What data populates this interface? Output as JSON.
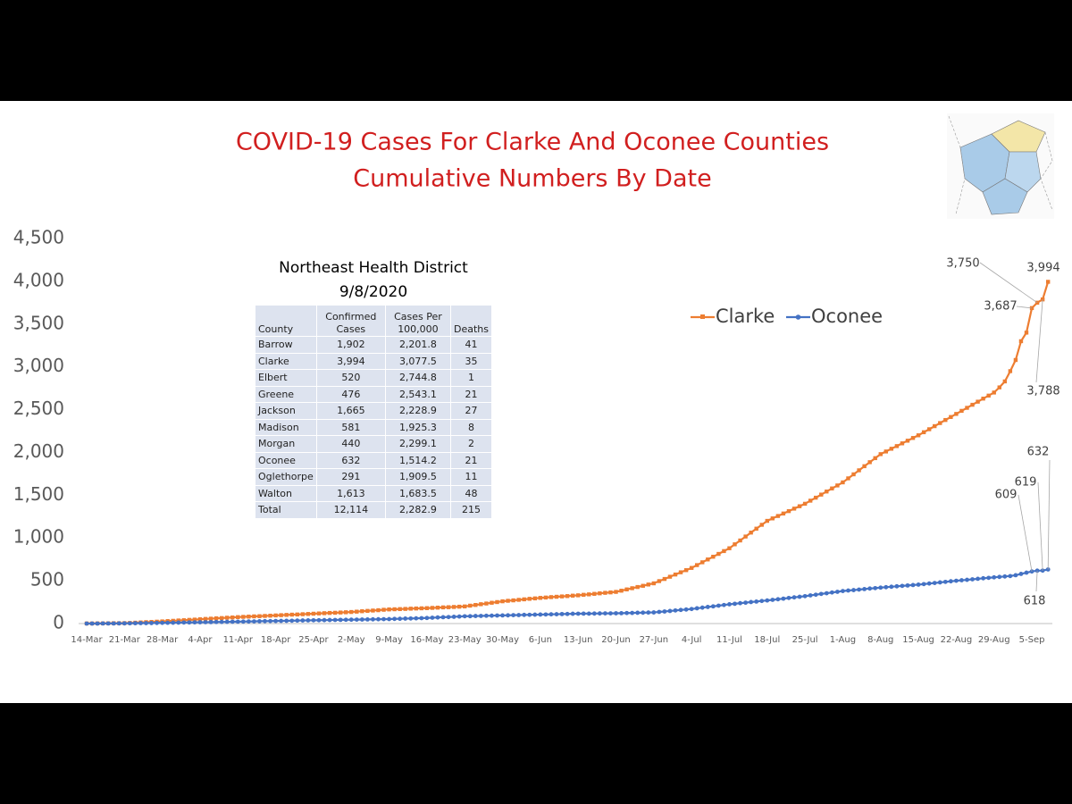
{
  "chart_data": {
    "type": "line",
    "title": "COVID-19 Cases For Clarke And Oconee Counties",
    "subtitle": "Cumulative Numbers By Date",
    "categories": [
      "14-Mar",
      null,
      null,
      null,
      null,
      null,
      null,
      "21-Mar",
      null,
      null,
      null,
      null,
      null,
      null,
      "28-Mar",
      null,
      null,
      null,
      null,
      null,
      null,
      "4-Apr",
      null,
      null,
      null,
      null,
      null,
      null,
      "11-Apr",
      null,
      null,
      null,
      null,
      null,
      null,
      "18-Apr",
      null,
      null,
      null,
      null,
      null,
      null,
      "25-Apr",
      null,
      null,
      null,
      null,
      null,
      null,
      "2-May",
      null,
      null,
      null,
      null,
      null,
      null,
      "9-May",
      null,
      null,
      null,
      null,
      null,
      null,
      "16-May",
      null,
      null,
      null,
      null,
      null,
      null,
      "23-May",
      null,
      null,
      null,
      null,
      null,
      null,
      "30-May",
      null,
      null,
      null,
      null,
      null,
      null,
      "6-Jun",
      null,
      null,
      null,
      null,
      null,
      null,
      "13-Jun",
      null,
      null,
      null,
      null,
      null,
      null,
      "20-Jun",
      null,
      null,
      null,
      null,
      null,
      null,
      "27-Jun",
      null,
      null,
      null,
      null,
      null,
      null,
      "4-Jul",
      null,
      null,
      null,
      null,
      null,
      null,
      "11-Jul",
      null,
      null,
      null,
      null,
      null,
      null,
      "18-Jul",
      null,
      null,
      null,
      null,
      null,
      null,
      "25-Jul",
      null,
      null,
      null,
      null,
      null,
      null,
      "1-Aug",
      null,
      null,
      null,
      null,
      null,
      null,
      "8-Aug",
      null,
      null,
      null,
      null,
      null,
      null,
      "15-Aug",
      null,
      null,
      null,
      null,
      null,
      null,
      "22-Aug",
      null,
      null,
      null,
      null,
      null,
      null,
      "29-Aug",
      null,
      null,
      null,
      null,
      null,
      null,
      "5-Sep",
      null,
      null,
      null
    ],
    "series": [
      {
        "name": "Clarke",
        "color": "#ed7d31",
        "marker": "square",
        "values": [
          1,
          1,
          2,
          2,
          3,
          4,
          4,
          5,
          7,
          10,
          13,
          16,
          19,
          22,
          25,
          29,
          32,
          36,
          39,
          43,
          46,
          50,
          54,
          57,
          61,
          64,
          68,
          71,
          75,
          78,
          81,
          84,
          86,
          89,
          92,
          95,
          98,
          101,
          104,
          106,
          109,
          112,
          115,
          118,
          121,
          124,
          126,
          129,
          132,
          135,
          139,
          144,
          148,
          152,
          156,
          161,
          165,
          167,
          169,
          171,
          174,
          176,
          178,
          180,
          183,
          186,
          189,
          191,
          194,
          197,
          200,
          209,
          217,
          226,
          234,
          243,
          251,
          260,
          266,
          271,
          277,
          283,
          289,
          294,
          300,
          304,
          309,
          313,
          317,
          321,
          326,
          330,
          336,
          341,
          347,
          353,
          359,
          364,
          370,
          384,
          399,
          413,
          427,
          441,
          456,
          470,
          496,
          521,
          547,
          573,
          599,
          624,
          650,
          683,
          716,
          749,
          781,
          814,
          847,
          880,
          926,
          971,
          1017,
          1063,
          1109,
          1154,
          1200,
          1229,
          1257,
          1286,
          1314,
          1343,
          1371,
          1400,
          1436,
          1471,
          1507,
          1543,
          1579,
          1614,
          1650,
          1697,
          1744,
          1791,
          1839,
          1886,
          1933,
          1980,
          2011,
          2043,
          2074,
          2106,
          2137,
          2169,
          2200,
          2236,
          2271,
          2307,
          2343,
          2379,
          2414,
          2450,
          2486,
          2521,
          2557,
          2593,
          2629,
          2664,
          2700,
          2760,
          2830,
          2950,
          3080,
          3300,
          3400,
          3687,
          3750,
          3788,
          3994
        ],
        "value_labels": [
          null,
          null,
          null,
          null,
          null,
          null,
          null,
          null,
          null,
          null,
          null,
          null,
          null,
          null,
          null,
          null,
          null,
          null,
          null,
          null,
          null,
          null,
          null,
          null,
          null,
          null,
          null,
          null,
          null,
          null,
          null,
          null,
          null,
          null,
          null,
          null,
          null,
          null,
          null,
          null,
          null,
          null,
          null,
          null,
          null,
          null,
          null,
          null,
          null,
          null,
          null,
          null,
          null,
          null,
          null,
          null,
          null,
          null,
          null,
          null,
          null,
          null,
          null,
          null,
          null,
          null,
          null,
          null,
          null,
          null,
          null,
          null,
          null,
          null,
          null,
          null,
          null,
          null,
          null,
          null,
          null,
          null,
          null,
          null,
          null,
          null,
          null,
          null,
          null,
          null,
          null,
          null,
          null,
          null,
          null,
          null,
          null,
          null,
          null,
          null,
          null,
          null,
          null,
          null,
          null,
          null,
          null,
          null,
          null,
          null,
          null,
          null,
          null,
          null,
          null,
          null,
          null,
          null,
          null,
          null,
          null,
          null,
          null,
          null,
          null,
          null,
          null,
          null,
          null,
          null,
          null,
          null,
          null,
          null,
          null,
          null,
          null,
          null,
          null,
          null,
          null,
          null,
          null,
          null,
          null,
          null,
          null,
          null,
          null,
          null,
          null,
          null,
          null,
          null,
          null,
          null,
          null,
          null,
          null,
          null,
          null,
          null,
          null,
          null,
          null,
          null,
          null,
          null,
          null,
          null,
          null,
          null,
          null,
          null,
          null,
          "3,687",
          "3,750",
          "3,788",
          "3,994"
        ]
      },
      {
        "name": "Oconee",
        "color": "#4472c4",
        "marker": "circle",
        "values": [
          0,
          0,
          0,
          1,
          1,
          1,
          2,
          2,
          3,
          4,
          5,
          5,
          6,
          7,
          8,
          9,
          10,
          11,
          12,
          13,
          14,
          15,
          16,
          17,
          18,
          19,
          20,
          21,
          22,
          23,
          24,
          25,
          27,
          28,
          29,
          30,
          31,
          32,
          33,
          35,
          36,
          37,
          38,
          39,
          40,
          41,
          42,
          43,
          44,
          45,
          46,
          47,
          48,
          49,
          50,
          51,
          52,
          54,
          56,
          58,
          59,
          61,
          63,
          65,
          68,
          71,
          74,
          76,
          79,
          82,
          85,
          86,
          88,
          89,
          91,
          92,
          94,
          95,
          96,
          98,
          99,
          101,
          102,
          104,
          105,
          106,
          108,
          109,
          111,
          112,
          114,
          115,
          116,
          116,
          117,
          118,
          119,
          119,
          120,
          121,
          123,
          124,
          126,
          127,
          129,
          130,
          136,
          141,
          147,
          153,
          159,
          164,
          170,
          178,
          186,
          194,
          201,
          209,
          217,
          225,
          231,
          238,
          244,
          251,
          257,
          264,
          270,
          277,
          284,
          291,
          299,
          306,
          313,
          320,
          329,
          337,
          346,
          354,
          363,
          371,
          380,
          386,
          391,
          397,
          403,
          409,
          414,
          420,
          425,
          430,
          435,
          440,
          445,
          450,
          455,
          461,
          468,
          474,
          481,
          487,
          494,
          500,
          506,
          511,
          517,
          523,
          529,
          534,
          540,
          545,
          550,
          555,
          565,
          580,
          595,
          609,
          618,
          619,
          632
        ],
        "value_labels": [
          null,
          null,
          null,
          null,
          null,
          null,
          null,
          null,
          null,
          null,
          null,
          null,
          null,
          null,
          null,
          null,
          null,
          null,
          null,
          null,
          null,
          null,
          null,
          null,
          null,
          null,
          null,
          null,
          null,
          null,
          null,
          null,
          null,
          null,
          null,
          null,
          null,
          null,
          null,
          null,
          null,
          null,
          null,
          null,
          null,
          null,
          null,
          null,
          null,
          null,
          null,
          null,
          null,
          null,
          null,
          null,
          null,
          null,
          null,
          null,
          null,
          null,
          null,
          null,
          null,
          null,
          null,
          null,
          null,
          null,
          null,
          null,
          null,
          null,
          null,
          null,
          null,
          null,
          null,
          null,
          null,
          null,
          null,
          null,
          null,
          null,
          null,
          null,
          null,
          null,
          null,
          null,
          null,
          null,
          null,
          null,
          null,
          null,
          null,
          null,
          null,
          null,
          null,
          null,
          null,
          null,
          null,
          null,
          null,
          null,
          null,
          null,
          null,
          null,
          null,
          null,
          null,
          null,
          null,
          null,
          null,
          null,
          null,
          null,
          null,
          null,
          null,
          null,
          null,
          null,
          null,
          null,
          null,
          null,
          null,
          null,
          null,
          null,
          null,
          null,
          null,
          null,
          null,
          null,
          null,
          null,
          null,
          null,
          null,
          null,
          null,
          null,
          null,
          null,
          null,
          null,
          null,
          null,
          null,
          null,
          null,
          null,
          null,
          null,
          null,
          null,
          null,
          null,
          null,
          null,
          null,
          null,
          null,
          null,
          null,
          "609",
          "618",
          "619",
          "632"
        ]
      }
    ],
    "ylim": [
      0,
      4500
    ],
    "yticks": [
      0,
      500,
      {
        "value": 1000,
        "label": "1,000"
      },
      {
        "value": 1500,
        "label": "1,500"
      },
      {
        "value": 2000,
        "label": "2,000"
      },
      {
        "value": 2500,
        "label": "2,500"
      },
      {
        "value": 3000,
        "label": "3,000"
      },
      {
        "value": 3500,
        "label": "3,500"
      },
      {
        "value": 4000,
        "label": "4,000"
      },
      {
        "value": 4500,
        "label": "4,500"
      }
    ],
    "grid": false,
    "legend": "upper-right"
  },
  "table": {
    "title": "Northeast Health District",
    "date": "9/8/2020",
    "header": [
      "County",
      "Confirmed Cases",
      "Cases Per 100,000",
      "Deaths"
    ],
    "rows": [
      [
        "Barrow",
        "1,902",
        "2,201.8",
        "41"
      ],
      [
        "Clarke",
        "3,994",
        "3,077.5",
        "35"
      ],
      [
        "Elbert",
        "520",
        "2,744.8",
        "1"
      ],
      [
        "Greene",
        "476",
        "2,543.1",
        "21"
      ],
      [
        "Jackson",
        "1,665",
        "2,228.9",
        "27"
      ],
      [
        "Madison",
        "581",
        "1,925.3",
        "8"
      ],
      [
        "Morgan",
        "440",
        "2,299.1",
        "2"
      ],
      [
        "Oconee",
        "632",
        "1,514.2",
        "21"
      ],
      [
        "Oglethorpe",
        "291",
        "1,909.5",
        "11"
      ],
      [
        "Walton",
        "1,613",
        "1,683.5",
        "48"
      ],
      [
        "Total",
        "12,114",
        "2,282.9",
        "215"
      ]
    ]
  }
}
